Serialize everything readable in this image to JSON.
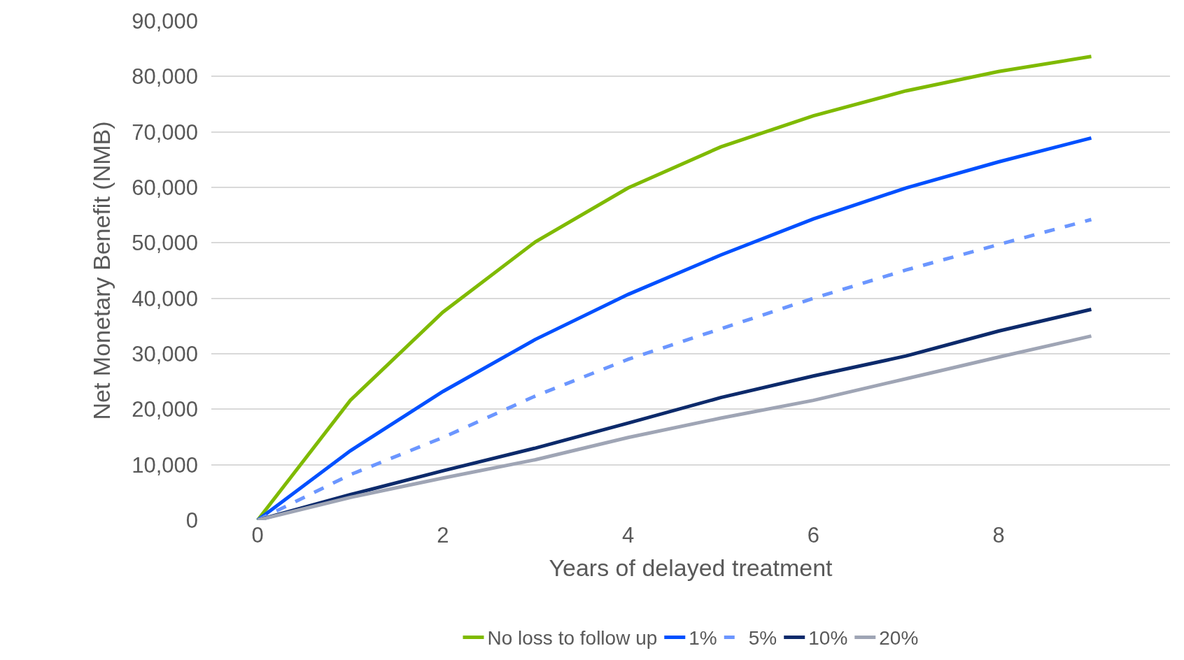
{
  "chart_data": {
    "type": "line",
    "xlabel": "Years of delayed treatment",
    "ylabel": "Net Monetary Benefit (NMB)",
    "x": [
      0,
      1,
      2,
      3,
      4,
      5,
      6,
      7,
      8,
      9
    ],
    "xlim": [
      -0.5,
      9.85
    ],
    "xticks": [
      0,
      2,
      4,
      6,
      8
    ],
    "ylim": [
      0,
      90000
    ],
    "yticks": [
      {
        "value": 0,
        "label": "0"
      },
      {
        "value": 10000,
        "label": "10,000"
      },
      {
        "value": 20000,
        "label": "20,000"
      },
      {
        "value": 30000,
        "label": "30,000"
      },
      {
        "value": 40000,
        "label": "40,000"
      },
      {
        "value": 50000,
        "label": "50,000"
      },
      {
        "value": 60000,
        "label": "60,000"
      },
      {
        "value": 70000,
        "label": "70,000"
      },
      {
        "value": 80000,
        "label": "80,000"
      },
      {
        "value": 90000,
        "label": "90,000"
      }
    ],
    "grid": "y",
    "legend": "bottom",
    "marker": "none",
    "series": [
      {
        "name": "No loss to follow up",
        "color": "#7fba00",
        "values": [
          0,
          21600,
          37500,
          50200,
          59900,
          67300,
          72900,
          77400,
          80900,
          83600
        ]
      },
      {
        "name": "1%",
        "color": "#0050ff",
        "values": [
          0,
          12500,
          23200,
          32600,
          40700,
          47800,
          54300,
          59900,
          64600,
          68900
        ]
      },
      {
        "name": "5%",
        "color": "#6b96ff",
        "line_style": "dashed",
        "values": [
          0,
          8200,
          14900,
          22400,
          29000,
          34500,
          40000,
          45100,
          49700,
          54200
        ]
      },
      {
        "name": "10%",
        "color": "#0c2a6b",
        "values": [
          0,
          4600,
          8900,
          13000,
          17500,
          22100,
          26000,
          29600,
          34100,
          38000
        ]
      },
      {
        "name": "20%",
        "color": "#9fa5b5",
        "values": [
          0,
          4100,
          7600,
          10900,
          14900,
          18400,
          21600,
          25500,
          29400,
          33200
        ]
      }
    ]
  }
}
